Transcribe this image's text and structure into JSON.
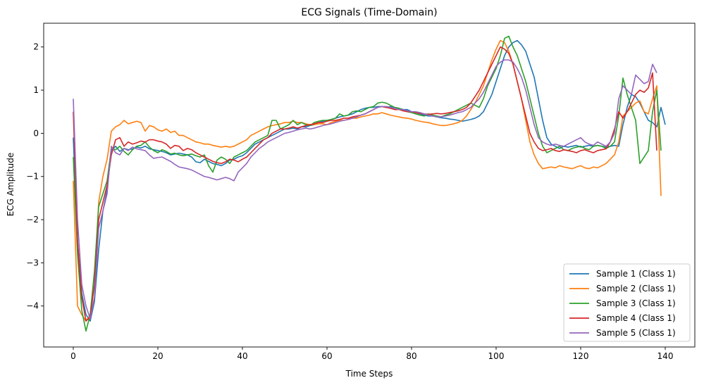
{
  "chart_data": {
    "type": "line",
    "title": "ECG Signals (Time-Domain)",
    "xlabel": "Time Steps",
    "ylabel": "ECG Amplitude",
    "xlim": [
      -7,
      147
    ],
    "ylim": [
      -4.95,
      2.55
    ],
    "xticks": [
      0,
      20,
      40,
      60,
      80,
      100,
      120,
      140
    ],
    "yticks": [
      -4,
      -3,
      -2,
      -1,
      0,
      1,
      2
    ],
    "legend_position": "lower-right",
    "grid": false,
    "series": [
      {
        "name": "Sample 1 (Class 1)",
        "color": "#1f77b4",
        "values": [
          -0.1,
          -2.5,
          -3.7,
          -4.2,
          -4.35,
          -3.9,
          -2.7,
          -1.8,
          -1.3,
          -0.4,
          -0.3,
          -0.42,
          -0.35,
          -0.38,
          -0.36,
          -0.32,
          -0.34,
          -0.3,
          -0.36,
          -0.38,
          -0.4,
          -0.42,
          -0.45,
          -0.5,
          -0.48,
          -0.46,
          -0.48,
          -0.5,
          -0.55,
          -0.66,
          -0.68,
          -0.6,
          -0.65,
          -0.7,
          -0.72,
          -0.75,
          -0.7,
          -0.62,
          -0.6,
          -0.55,
          -0.52,
          -0.45,
          -0.35,
          -0.25,
          -0.2,
          -0.15,
          -0.1,
          -0.05,
          0.0,
          0.05,
          0.1,
          0.1,
          0.12,
          0.1,
          0.15,
          0.15,
          0.18,
          0.2,
          0.25,
          0.28,
          0.3,
          0.32,
          0.35,
          0.38,
          0.4,
          0.42,
          0.45,
          0.5,
          0.55,
          0.58,
          0.6,
          0.6,
          0.62,
          0.62,
          0.6,
          0.62,
          0.6,
          0.58,
          0.55,
          0.55,
          0.5,
          0.48,
          0.45,
          0.42,
          0.4,
          0.4,
          0.38,
          0.36,
          0.35,
          0.33,
          0.32,
          0.3,
          0.28,
          0.3,
          0.32,
          0.35,
          0.4,
          0.5,
          0.7,
          0.9,
          1.2,
          1.5,
          1.8,
          2.0,
          2.1,
          2.15,
          2.05,
          1.9,
          1.6,
          1.3,
          0.8,
          0.3,
          -0.1,
          -0.25,
          -0.3,
          -0.35,
          -0.3,
          -0.32,
          -0.3,
          -0.28,
          -0.32,
          -0.3,
          -0.28,
          -0.3,
          -0.28,
          -0.3,
          -0.32,
          -0.3,
          -0.28,
          -0.3,
          0.2,
          0.6,
          0.9,
          0.85,
          0.7,
          0.5,
          0.3,
          0.25,
          0.15,
          0.6,
          0.2
        ]
      },
      {
        "name": "Sample 2 (Class 1)",
        "color": "#ff7f0e",
        "values": [
          -1.1,
          -4.0,
          -4.2,
          -4.35,
          -4.2,
          -3.5,
          -1.6,
          -1.0,
          -0.6,
          0.05,
          0.15,
          0.2,
          0.3,
          0.22,
          0.25,
          0.28,
          0.25,
          0.05,
          0.18,
          0.15,
          0.08,
          0.05,
          0.1,
          0.02,
          0.05,
          -0.05,
          -0.05,
          -0.1,
          -0.15,
          -0.2,
          -0.22,
          -0.25,
          -0.25,
          -0.28,
          -0.3,
          -0.32,
          -0.3,
          -0.32,
          -0.3,
          -0.25,
          -0.2,
          -0.15,
          -0.05,
          0.0,
          0.05,
          0.1,
          0.15,
          0.18,
          0.2,
          0.22,
          0.25,
          0.25,
          0.28,
          0.25,
          0.25,
          0.22,
          0.2,
          0.2,
          0.22,
          0.22,
          0.2,
          0.25,
          0.28,
          0.3,
          0.3,
          0.32,
          0.35,
          0.35,
          0.38,
          0.4,
          0.42,
          0.45,
          0.45,
          0.48,
          0.45,
          0.42,
          0.4,
          0.38,
          0.36,
          0.35,
          0.33,
          0.3,
          0.28,
          0.26,
          0.25,
          0.22,
          0.2,
          0.18,
          0.18,
          0.2,
          0.22,
          0.25,
          0.3,
          0.4,
          0.55,
          0.7,
          0.9,
          1.1,
          1.4,
          1.7,
          1.95,
          2.15,
          2.1,
          1.9,
          1.6,
          1.2,
          0.8,
          0.3,
          -0.2,
          -0.5,
          -0.7,
          -0.82,
          -0.8,
          -0.78,
          -0.8,
          -0.75,
          -0.78,
          -0.8,
          -0.82,
          -0.78,
          -0.75,
          -0.8,
          -0.82,
          -0.78,
          -0.8,
          -0.75,
          -0.7,
          -0.6,
          -0.5,
          -0.2,
          0.4,
          0.5,
          0.6,
          0.7,
          0.75,
          0.5,
          0.45,
          0.8,
          1.1,
          -1.45
        ]
      },
      {
        "name": "Sample 3 (Class 1)",
        "color": "#2ca02c",
        "values": [
          -0.55,
          -2.8,
          -4.1,
          -4.58,
          -4.2,
          -3.2,
          -1.7,
          -1.4,
          -1.1,
          -0.35,
          -0.38,
          -0.3,
          -0.42,
          -0.5,
          -0.38,
          -0.3,
          -0.28,
          -0.2,
          -0.32,
          -0.4,
          -0.45,
          -0.38,
          -0.42,
          -0.48,
          -0.46,
          -0.5,
          -0.52,
          -0.5,
          -0.48,
          -0.52,
          -0.55,
          -0.5,
          -0.75,
          -0.9,
          -0.62,
          -0.55,
          -0.6,
          -0.7,
          -0.55,
          -0.5,
          -0.45,
          -0.4,
          -0.3,
          -0.2,
          -0.15,
          -0.1,
          -0.05,
          0.3,
          0.3,
          0.1,
          0.15,
          0.2,
          0.3,
          0.2,
          0.25,
          0.2,
          0.18,
          0.25,
          0.28,
          0.3,
          0.3,
          0.32,
          0.35,
          0.45,
          0.4,
          0.42,
          0.5,
          0.52,
          0.5,
          0.55,
          0.6,
          0.62,
          0.7,
          0.72,
          0.7,
          0.65,
          0.6,
          0.58,
          0.55,
          0.5,
          0.48,
          0.45,
          0.42,
          0.4,
          0.45,
          0.42,
          0.4,
          0.38,
          0.42,
          0.45,
          0.5,
          0.55,
          0.6,
          0.65,
          0.7,
          0.65,
          0.6,
          0.8,
          1.1,
          1.3,
          1.5,
          1.8,
          2.2,
          2.25,
          2.0,
          1.8,
          1.5,
          1.2,
          0.8,
          0.4,
          0.0,
          -0.3,
          -0.45,
          -0.4,
          -0.35,
          -0.3,
          -0.38,
          -0.4,
          -0.35,
          -0.32,
          -0.3,
          -0.35,
          -0.38,
          -0.3,
          -0.28,
          -0.3,
          -0.35,
          -0.3,
          -0.2,
          0.4,
          1.28,
          0.9,
          0.6,
          0.3,
          -0.7,
          -0.55,
          -0.4,
          0.5,
          1.0,
          -0.4
        ]
      },
      {
        "name": "Sample 4 (Class 1)",
        "color": "#d62728",
        "values": [
          0.5,
          -2.5,
          -3.8,
          -4.35,
          -4.25,
          -3.5,
          -2.0,
          -1.6,
          -1.2,
          -0.5,
          -0.15,
          -0.1,
          -0.3,
          -0.2,
          -0.25,
          -0.22,
          -0.18,
          -0.2,
          -0.15,
          -0.15,
          -0.18,
          -0.2,
          -0.25,
          -0.35,
          -0.28,
          -0.3,
          -0.4,
          -0.35,
          -0.38,
          -0.45,
          -0.5,
          -0.55,
          -0.6,
          -0.65,
          -0.68,
          -0.7,
          -0.66,
          -0.6,
          -0.62,
          -0.66,
          -0.6,
          -0.55,
          -0.45,
          -0.35,
          -0.25,
          -0.15,
          -0.1,
          0.0,
          0.05,
          0.1,
          0.1,
          0.12,
          0.15,
          0.12,
          0.15,
          0.18,
          0.2,
          0.22,
          0.25,
          0.25,
          0.28,
          0.3,
          0.3,
          0.32,
          0.35,
          0.35,
          0.38,
          0.4,
          0.42,
          0.45,
          0.5,
          0.55,
          0.6,
          0.62,
          0.6,
          0.58,
          0.55,
          0.55,
          0.52,
          0.5,
          0.5,
          0.48,
          0.46,
          0.45,
          0.44,
          0.45,
          0.46,
          0.45,
          0.46,
          0.48,
          0.5,
          0.52,
          0.55,
          0.6,
          0.7,
          0.85,
          1.0,
          1.2,
          1.4,
          1.6,
          1.8,
          2.0,
          1.95,
          1.85,
          1.6,
          1.2,
          0.8,
          0.4,
          0.0,
          -0.2,
          -0.35,
          -0.4,
          -0.38,
          -0.35,
          -0.4,
          -0.42,
          -0.38,
          -0.4,
          -0.42,
          -0.45,
          -0.4,
          -0.38,
          -0.42,
          -0.45,
          -0.4,
          -0.38,
          -0.36,
          -0.2,
          0.1,
          0.5,
          0.35,
          0.5,
          0.7,
          0.9,
          1.0,
          0.95,
          1.05,
          1.4,
          -0.4
        ]
      },
      {
        "name": "Sample 5 (Class 1)",
        "color": "#9467bd",
        "values": [
          0.8,
          -2.0,
          -3.5,
          -4.0,
          -4.3,
          -3.8,
          -2.2,
          -1.8,
          -1.4,
          -0.3,
          -0.45,
          -0.5,
          -0.35,
          -0.4,
          -0.32,
          -0.36,
          -0.38,
          -0.4,
          -0.5,
          -0.58,
          -0.56,
          -0.55,
          -0.6,
          -0.65,
          -0.72,
          -0.78,
          -0.8,
          -0.82,
          -0.85,
          -0.9,
          -0.95,
          -1.0,
          -1.02,
          -1.05,
          -1.08,
          -1.05,
          -1.02,
          -1.05,
          -1.1,
          -0.9,
          -0.8,
          -0.7,
          -0.55,
          -0.45,
          -0.35,
          -0.28,
          -0.2,
          -0.15,
          -0.1,
          -0.05,
          0.0,
          0.02,
          0.05,
          0.08,
          0.1,
          0.12,
          0.1,
          0.12,
          0.15,
          0.18,
          0.2,
          0.22,
          0.25,
          0.28,
          0.3,
          0.32,
          0.35,
          0.38,
          0.42,
          0.45,
          0.5,
          0.55,
          0.6,
          0.62,
          0.62,
          0.6,
          0.58,
          0.55,
          0.55,
          0.52,
          0.5,
          0.5,
          0.48,
          0.45,
          0.42,
          0.4,
          0.38,
          0.38,
          0.4,
          0.42,
          0.45,
          0.48,
          0.5,
          0.55,
          0.6,
          0.7,
          0.8,
          0.95,
          1.15,
          1.35,
          1.55,
          1.65,
          1.7,
          1.7,
          1.65,
          1.5,
          1.3,
          1.0,
          0.6,
          0.2,
          -0.1,
          -0.2,
          -0.25,
          -0.28,
          -0.25,
          -0.28,
          -0.3,
          -0.25,
          -0.2,
          -0.15,
          -0.1,
          -0.2,
          -0.25,
          -0.28,
          -0.2,
          -0.25,
          -0.3,
          -0.2,
          0.0,
          0.8,
          1.1,
          1.0,
          0.9,
          1.35,
          1.25,
          1.15,
          1.2,
          1.6,
          1.4
        ]
      }
    ]
  }
}
